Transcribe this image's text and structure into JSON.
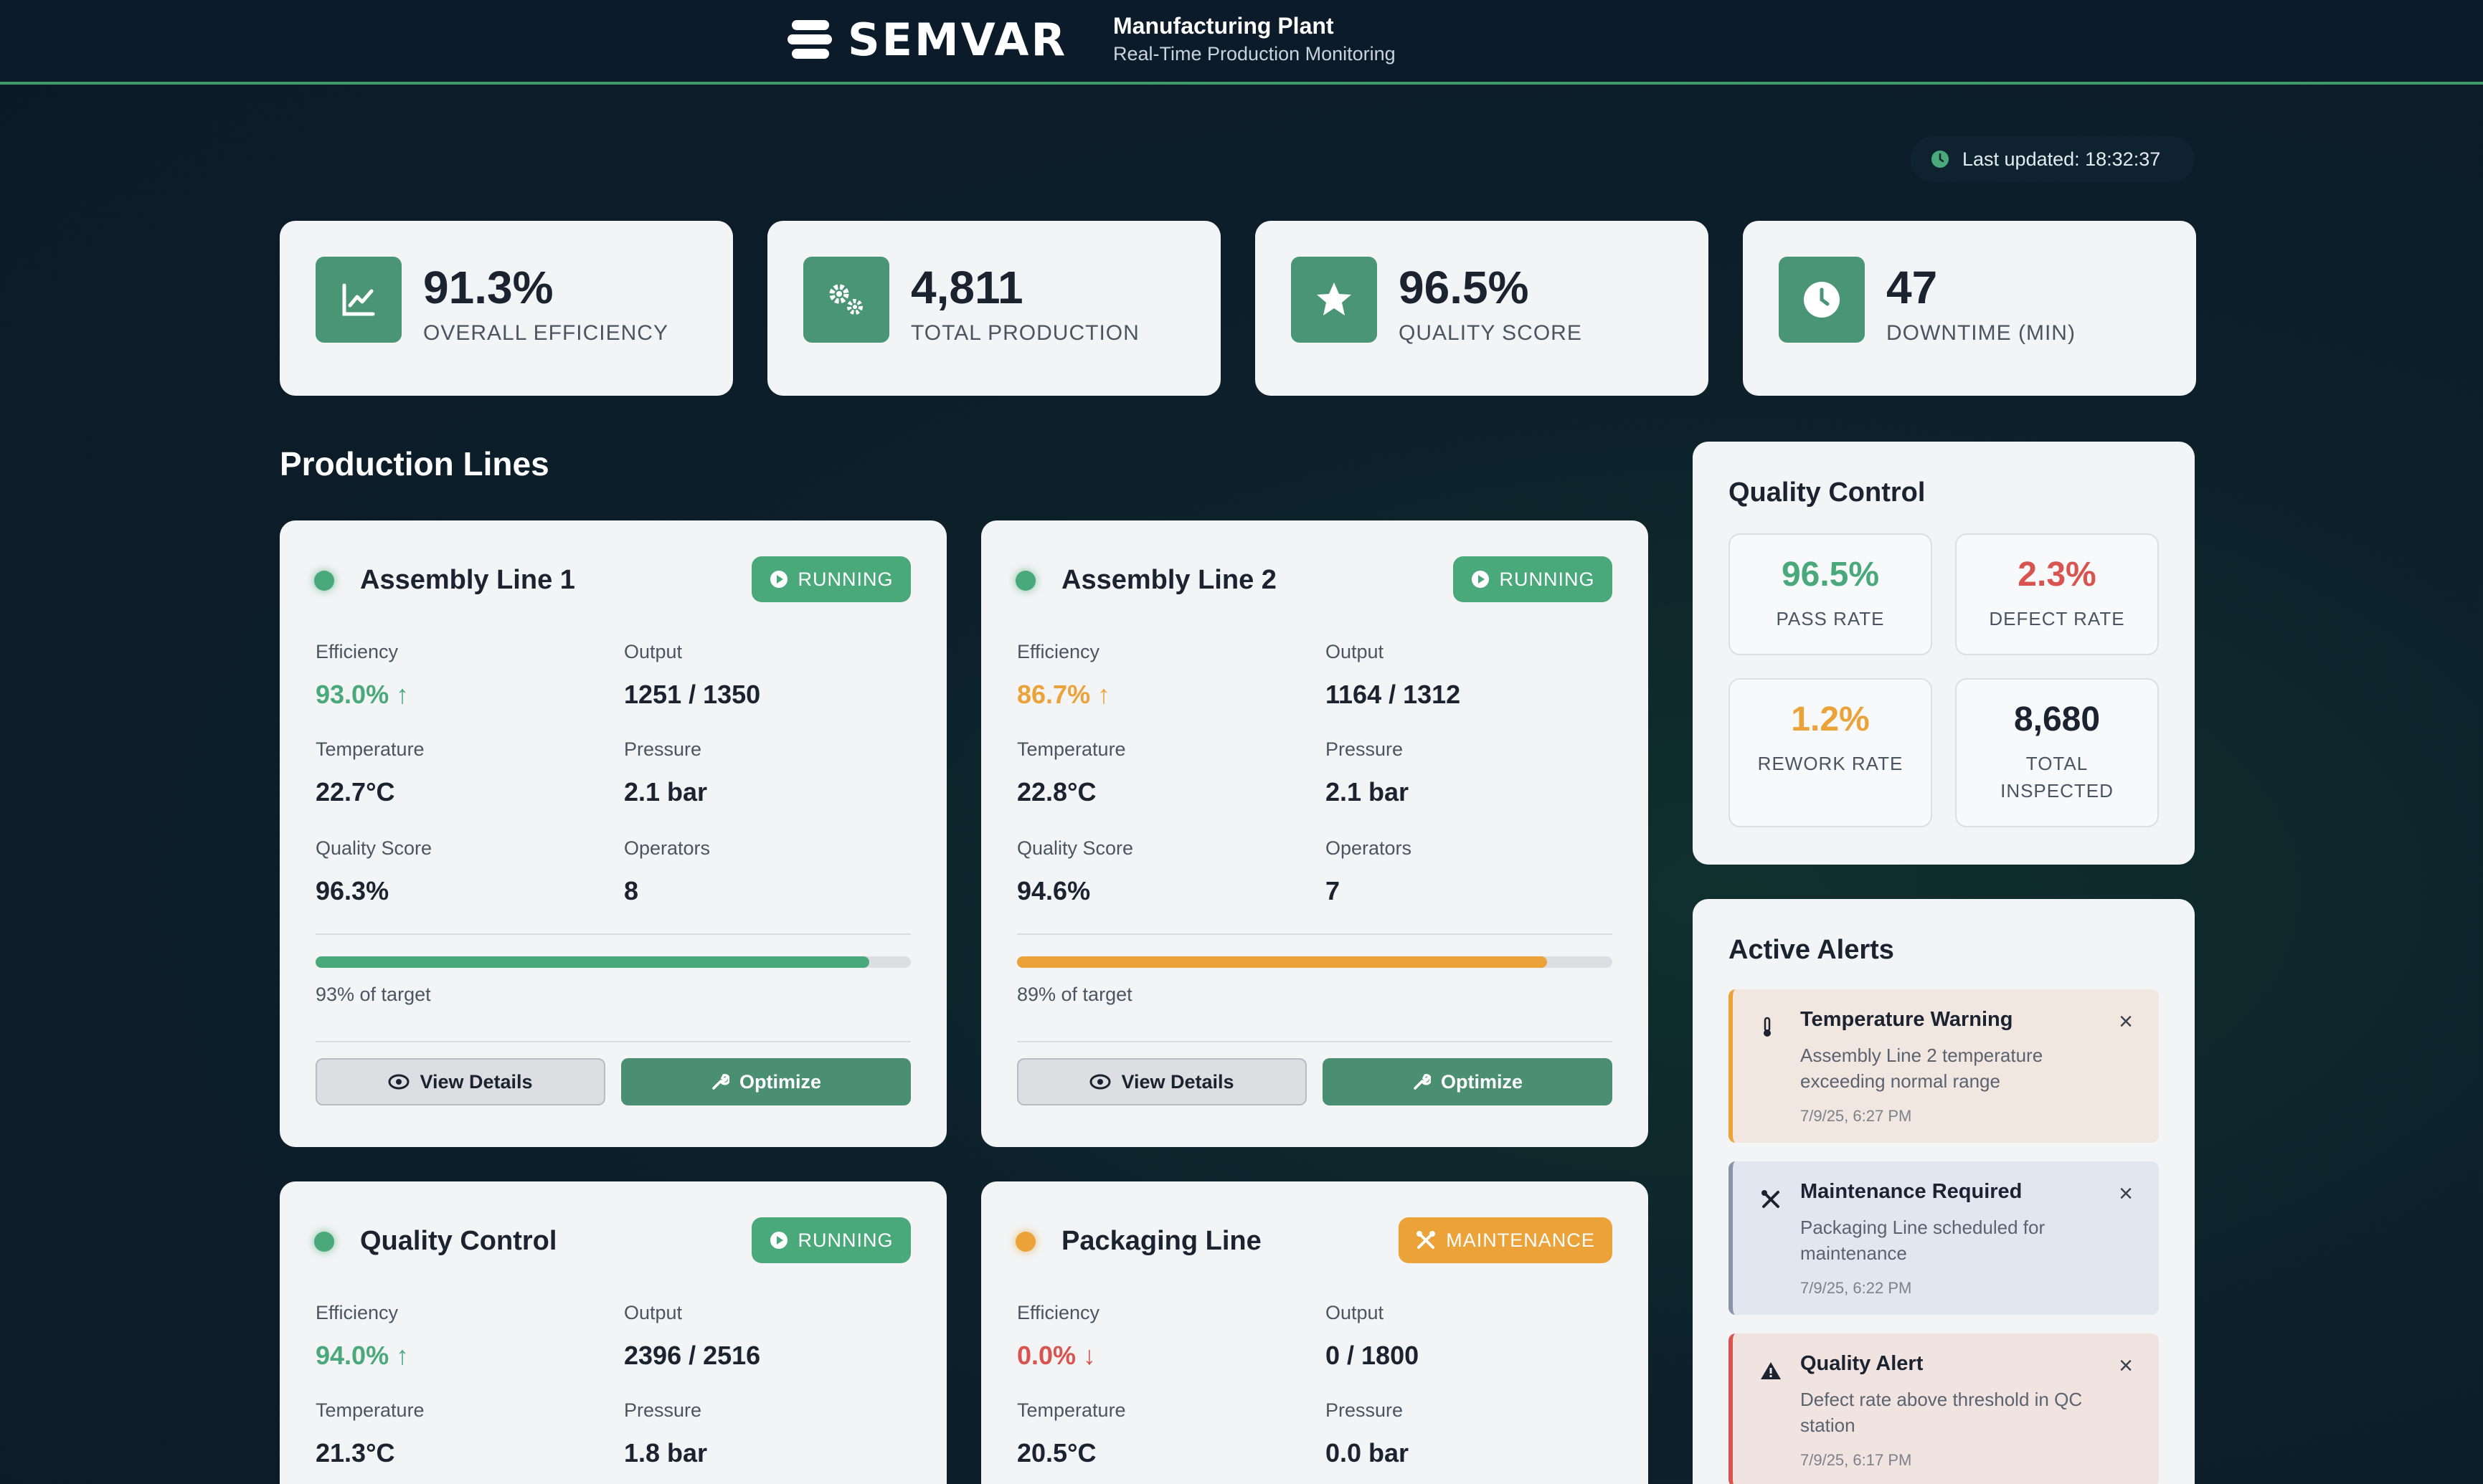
{
  "header": {
    "brand": "SEMVAR",
    "title": "Manufacturing Plant",
    "subtitle": "Real-Time Production Monitoring"
  },
  "last_updated": "Last updated: 18:32:37",
  "kpis": [
    {
      "value": "91.3%",
      "label": "OVERALL EFFICIENCY",
      "icon": "chart-line-icon"
    },
    {
      "value": "4,811",
      "label": "TOTAL PRODUCTION",
      "icon": "gears-icon"
    },
    {
      "value": "96.5%",
      "label": "QUALITY SCORE",
      "icon": "star-icon"
    },
    {
      "value": "47",
      "label": "DOWNTIME (MIN)",
      "icon": "clock-icon"
    }
  ],
  "section_title": "Production Lines",
  "metric_labels": {
    "efficiency": "Efficiency",
    "output": "Output",
    "temperature": "Temperature",
    "pressure": "Pressure",
    "quality": "Quality Score",
    "operators": "Operators"
  },
  "buttons": {
    "view": "View Details",
    "optimize": "Optimize"
  },
  "lines": [
    {
      "name": "Assembly Line 1",
      "status": "RUNNING",
      "efficiency": "93.0% ↑",
      "output": "1251 / 1350",
      "temperature": "22.7°C",
      "pressure": "2.1 bar",
      "quality": "96.3%",
      "operators": "8",
      "progress": 0.93,
      "progress_text": "93% of target",
      "progress_color": "#4aa97a"
    },
    {
      "name": "Assembly Line 2",
      "status": "RUNNING",
      "efficiency": "86.7% ↑",
      "output": "1164 / 1312",
      "temperature": "22.8°C",
      "pressure": "2.1 bar",
      "quality": "94.6%",
      "operators": "7",
      "progress": 0.89,
      "progress_text": "89% of target",
      "progress_color": "#eba239"
    },
    {
      "name": "Quality Control",
      "status": "RUNNING",
      "efficiency": "94.0% ↑",
      "output": "2396 / 2516",
      "temperature": "21.3°C",
      "pressure": "1.8 bar"
    },
    {
      "name": "Packaging Line",
      "status": "MAINTENANCE",
      "efficiency": "0.0% ↓",
      "output": "0 / 1800",
      "temperature": "20.5°C",
      "pressure": "0.0 bar"
    }
  ],
  "quality_control": {
    "title": "Quality Control",
    "pass_rate": "96.5%",
    "pass_label": "PASS RATE",
    "defect_rate": "2.3%",
    "defect_label": "DEFECT RATE",
    "rework_rate": "1.2%",
    "rework_label": "REWORK RATE",
    "total_inspected": "8,680",
    "total_label_1": "TOTAL",
    "total_label_2": "INSPECTED"
  },
  "alerts": {
    "title": "Active Alerts",
    "items": [
      {
        "title": "Temperature Warning",
        "msg": "Assembly Line 2 temperature exceeding normal range",
        "time": "7/9/25, 6:27 PM",
        "icon": "thermometer-icon"
      },
      {
        "title": "Maintenance Required",
        "msg": "Packaging Line scheduled for maintenance",
        "time": "7/9/25, 6:22 PM",
        "icon": "tools-icon"
      },
      {
        "title": "Quality Alert",
        "msg": "Defect rate above threshold in QC station",
        "time": "7/9/25, 6:17 PM",
        "icon": "warning-icon"
      }
    ]
  },
  "colors": {
    "accent": "#4aa97a",
    "warning": "#eba239",
    "danger": "#d9534f",
    "background": "#0c1b29"
  }
}
